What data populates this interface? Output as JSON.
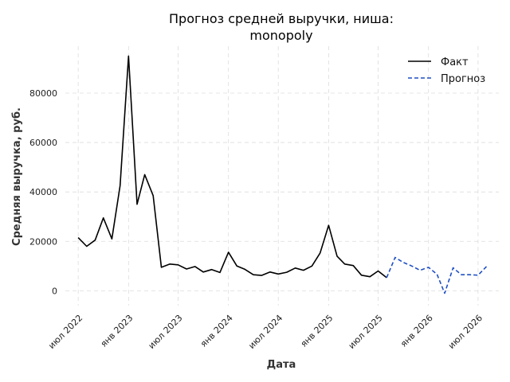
{
  "chart_data": {
    "type": "line",
    "title_lines": [
      "Прогноз средней выручки, ниша:",
      "monopoly"
    ],
    "xlabel": "Дата",
    "ylabel": "Средняя выручка, руб.",
    "ylim": [
      -6000,
      99000
    ],
    "yticks": [
      0,
      20000,
      40000,
      60000,
      80000
    ],
    "ytick_labels": [
      "0",
      "20000",
      "40000",
      "60000",
      "80000"
    ],
    "xlim": [
      "2022-05-15",
      "2026-09-15"
    ],
    "xticks": [
      "2022-07-01",
      "2023-01-01",
      "2023-07-01",
      "2024-01-01",
      "2024-07-01",
      "2025-01-01",
      "2025-07-01",
      "2026-01-01",
      "2026-07-01"
    ],
    "xtick_labels": [
      "июл 2022",
      "янв 2023",
      "июл 2023",
      "янв 2024",
      "июл 2024",
      "янв 2025",
      "июл 2025",
      "янв 2026",
      "июл 2026"
    ],
    "grid": true,
    "legend_position": "top-right",
    "series": [
      {
        "name": "Факт",
        "color": "#000000",
        "style": "solid",
        "x": [
          "2022-07-01",
          "2022-08-01",
          "2022-09-01",
          "2022-10-01",
          "2022-11-01",
          "2022-12-01",
          "2023-01-01",
          "2023-02-01",
          "2023-03-01",
          "2023-04-01",
          "2023-05-01",
          "2023-06-01",
          "2023-07-01",
          "2023-08-01",
          "2023-09-01",
          "2023-10-01",
          "2023-11-01",
          "2023-12-01",
          "2024-01-01",
          "2024-02-01",
          "2024-03-01",
          "2024-04-01",
          "2024-05-01",
          "2024-06-01",
          "2024-07-01",
          "2024-08-01",
          "2024-09-01",
          "2024-10-01",
          "2024-11-01",
          "2024-12-01",
          "2025-01-01",
          "2025-02-01",
          "2025-03-01",
          "2025-04-01",
          "2025-05-01",
          "2025-06-01",
          "2025-07-01",
          "2025-08-01"
        ],
        "y": [
          21500,
          18000,
          20500,
          29500,
          21000,
          42500,
          95000,
          35000,
          47000,
          38500,
          9500,
          10800,
          10500,
          8800,
          9800,
          7600,
          8600,
          7400,
          15600,
          10000,
          8700,
          6500,
          6200,
          7600,
          6800,
          7500,
          9200,
          8300,
          10000,
          15300,
          26500,
          14000,
          10800,
          10200,
          6300,
          5700,
          8000,
          5300
        ]
      },
      {
        "name": "Прогноз",
        "color": "#1f4fc4",
        "style": "dashed",
        "x": [
          "2025-08-01",
          "2025-09-01",
          "2025-10-01",
          "2025-11-01",
          "2025-12-01",
          "2026-01-01",
          "2026-02-01",
          "2026-03-01",
          "2026-04-01",
          "2026-05-01",
          "2026-06-01",
          "2026-07-01",
          "2026-08-01"
        ],
        "y": [
          5300,
          13500,
          11500,
          10000,
          8300,
          9500,
          6700,
          -1000,
          9300,
          6500,
          6500,
          6300,
          9800
        ]
      }
    ]
  }
}
